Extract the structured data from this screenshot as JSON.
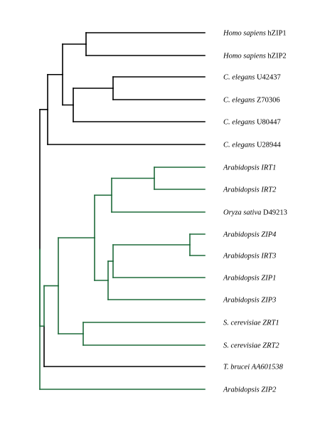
{
  "colors": {
    "black_clade": "#000000",
    "green_clade": "#1e6b3a",
    "background": "#ffffff"
  },
  "leaves": [
    {
      "id": "L1",
      "name": "Homo sapiens",
      "accession": "hZIP1",
      "italic_accession": false,
      "clade": "black"
    },
    {
      "id": "L2",
      "name": "Homo sapiens",
      "accession": "hZIP2",
      "italic_accession": false,
      "clade": "black"
    },
    {
      "id": "L3",
      "name": "C. elegans",
      "accession": "U42437",
      "italic_accession": false,
      "clade": "black"
    },
    {
      "id": "L4",
      "name": "C. elegans",
      "accession": "Z70306",
      "italic_accession": false,
      "clade": "black"
    },
    {
      "id": "L5",
      "name": "C. elegans",
      "accession": "U80447",
      "italic_accession": false,
      "clade": "black"
    },
    {
      "id": "L6",
      "name": "C. elegans",
      "accession": "U28944",
      "italic_accession": false,
      "clade": "black"
    },
    {
      "id": "L7",
      "name": "Arabidopsis",
      "accession": "IRT1",
      "italic_accession": true,
      "clade": "green"
    },
    {
      "id": "L8",
      "name": "Arabidopsis",
      "accession": "IRT2",
      "italic_accession": true,
      "clade": "green"
    },
    {
      "id": "L9",
      "name": "Oryza sativa",
      "accession": "D49213",
      "italic_accession": false,
      "clade": "green"
    },
    {
      "id": "L10",
      "name": "Arabidopsis",
      "accession": "ZIP4",
      "italic_accession": true,
      "clade": "green"
    },
    {
      "id": "L11",
      "name": "Arabidopsis",
      "accession": "IRT3",
      "italic_accession": true,
      "clade": "green"
    },
    {
      "id": "L12",
      "name": "Arabidopsis",
      "accession": "ZIP1",
      "italic_accession": true,
      "clade": "green"
    },
    {
      "id": "L13",
      "name": "Arabidopsis",
      "accession": "ZIP3",
      "italic_accession": true,
      "clade": "green"
    },
    {
      "id": "L14",
      "name": "S. cerevisiae",
      "accession": "ZRT1",
      "italic_accession": true,
      "clade": "green"
    },
    {
      "id": "L15",
      "name": "S. cerevisiae",
      "accession": "ZRT2",
      "italic_accession": true,
      "clade": "green"
    },
    {
      "id": "L16",
      "name": "T. brucei",
      "accession": "AA601538",
      "italic_accession": true,
      "clade": "black"
    },
    {
      "id": "L17",
      "name": "Arabidopsis",
      "accession": "ZIP2",
      "italic_accession": true,
      "clade": "green"
    }
  ],
  "tree": {
    "children": [
      {
        "clade": "black",
        "children": [
          {
            "clade": "black",
            "children": [
              {
                "clade": "black",
                "children": [
                  {
                    "leaf": "L1"
                  },
                  {
                    "leaf": "L2"
                  }
                ]
              },
              {
                "clade": "black",
                "children": [
                  {
                    "clade": "black",
                    "children": [
                      {
                        "leaf": "L3"
                      },
                      {
                        "leaf": "L4"
                      }
                    ]
                  },
                  {
                    "leaf": "L5"
                  }
                ]
              }
            ]
          },
          {
            "leaf": "L6"
          }
        ]
      },
      {
        "clade": "green",
        "children": [
          {
            "clade": "green",
            "children": [
              {
                "clade": "green",
                "children": [
                  {
                    "clade": "green",
                    "children": [
                      {
                        "clade": "green",
                        "children": [
                          {
                            "leaf": "L7"
                          },
                          {
                            "leaf": "L8"
                          }
                        ]
                      },
                      {
                        "leaf": "L9"
                      }
                    ]
                  },
                  {
                    "clade": "green",
                    "children": [
                      {
                        "clade": "green",
                        "children": [
                          {
                            "clade": "green",
                            "children": [
                              {
                                "leaf": "L10"
                              },
                              {
                                "leaf": "L11"
                              }
                            ]
                          },
                          {
                            "leaf": "L12"
                          }
                        ]
                      },
                      {
                        "leaf": "L13"
                      }
                    ]
                  }
                ]
              },
              {
                "clade": "green",
                "children": [
                  {
                    "leaf": "L14"
                  },
                  {
                    "leaf": "L15"
                  }
                ]
              }
            ]
          },
          {
            "leaf": "L16",
            "clade": "black"
          }
        ]
      },
      {
        "leaf": "L17",
        "clade": "green"
      }
    ]
  }
}
